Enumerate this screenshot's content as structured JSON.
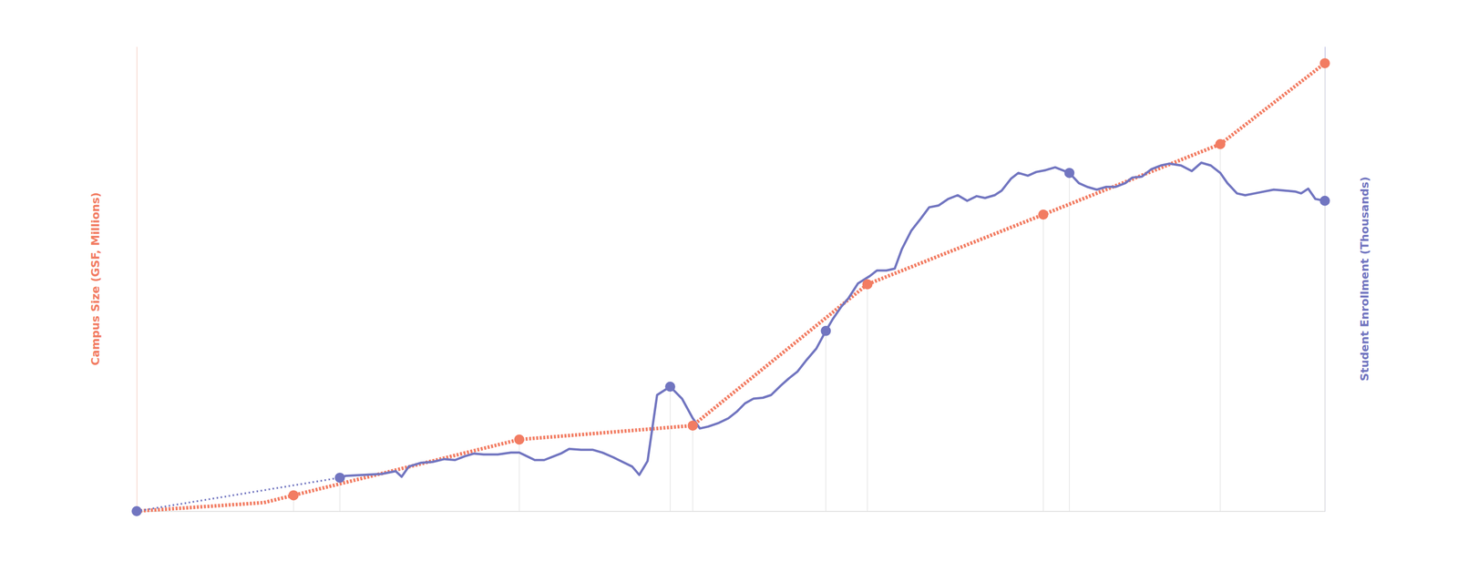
{
  "chart_data": {
    "type": "line",
    "y_label": "Campus Size (GSF, Millions)",
    "y2_label": "Student Enrollment (Thousands)",
    "xlim": [
      0,
      100
    ],
    "ylim": [
      0,
      12
    ],
    "y2lim": [
      0,
      50
    ],
    "tick_labels": false,
    "grid": false,
    "series": [
      {
        "type": "line",
        "color": "#f27c62",
        "line_style": "dotted",
        "marker": "none",
        "x": [
          0,
          10.7,
          13.2,
          32.2,
          46.8,
          61.5,
          76.3,
          91.2,
          100
        ],
        "values": [
          0,
          0.22,
          0.41,
          1.85,
          2.21,
          5.86,
          7.66,
          9.48,
          11.57
        ]
      },
      {
        "type": "scatter",
        "color": "#f27c62",
        "marker": "circle",
        "x": [
          13.2,
          32.2,
          46.8,
          61.5,
          76.3,
          91.2,
          100
        ],
        "values": [
          0.41,
          1.85,
          2.21,
          5.86,
          7.66,
          9.48,
          11.57
        ]
      },
      {
        "type": "line",
        "color": "#7175c0",
        "line_style": "dotted",
        "marker": "circle",
        "axis": "y2",
        "x": [
          0,
          17.1
        ],
        "values": [
          0,
          3.6
        ]
      },
      {
        "type": "line",
        "color": "#7175c0",
        "line_style": "solid",
        "marker": "none",
        "axis": "y2",
        "x": [
          17.1,
          17.6,
          19.0,
          20.6,
          21.8,
          22.3,
          22.9,
          23.9,
          24.9,
          25.9,
          26.8,
          27.6,
          28.4,
          29.2,
          30.4,
          31.5,
          32.2,
          32.7,
          33.5,
          34.3,
          35.1,
          35.7,
          36.4,
          37.4,
          38.4,
          39.2,
          40.1,
          40.9,
          41.7,
          42.3,
          43.0,
          43.8,
          44.9,
          45.9,
          46.8,
          47.4,
          48.1,
          49.0,
          49.8,
          50.5,
          51.2,
          51.9,
          52.7,
          53.4,
          54.2,
          54.9,
          55.6,
          56.4,
          57.2,
          58.0,
          58.6,
          59.3,
          59.9,
          60.7,
          61.7,
          62.3,
          63.1,
          63.8,
          64.4,
          65.2,
          66.0,
          66.7,
          67.5,
          68.3,
          69.1,
          69.9,
          70.7,
          71.4,
          72.2,
          72.8,
          73.6,
          74.2,
          75.0,
          75.7,
          76.5,
          77.3,
          78.5,
          79.3,
          80.0,
          80.8,
          81.6,
          82.4,
          83.2,
          83.8,
          84.6,
          85.4,
          86.2,
          86.9,
          87.9,
          88.8,
          89.6,
          90.4,
          91.2,
          91.8,
          92.6,
          93.3,
          94.1,
          94.9,
          95.7,
          96.6,
          97.5,
          98.0,
          98.6,
          99.2,
          100
        ],
        "values": [
          3.6,
          3.8,
          3.9,
          4.0,
          4.3,
          3.7,
          4.8,
          5.2,
          5.3,
          5.6,
          5.5,
          5.9,
          6.2,
          6.1,
          6.1,
          6.3,
          6.3,
          6.0,
          5.5,
          5.5,
          5.9,
          6.2,
          6.7,
          6.6,
          6.6,
          6.3,
          5.8,
          5.3,
          4.8,
          3.9,
          5.4,
          12.5,
          13.4,
          12.1,
          10.0,
          8.9,
          9.1,
          9.5,
          10.0,
          10.7,
          11.6,
          12.1,
          12.2,
          12.5,
          13.5,
          14.3,
          15.0,
          16.3,
          17.5,
          19.4,
          20.7,
          22.0,
          22.9,
          24.5,
          25.3,
          25.9,
          25.9,
          26.1,
          28.2,
          30.2,
          31.5,
          32.7,
          32.9,
          33.6,
          34.0,
          33.4,
          33.9,
          33.7,
          34.0,
          34.5,
          35.8,
          36.4,
          36.1,
          36.5,
          36.7,
          37.0,
          36.4,
          35.3,
          34.9,
          34.6,
          34.9,
          34.9,
          35.3,
          35.9,
          36.0,
          36.8,
          37.2,
          37.4,
          37.2,
          36.6,
          37.5,
          37.2,
          36.4,
          35.3,
          34.2,
          34.0,
          34.2,
          34.4,
          34.6,
          34.5,
          34.4,
          34.2,
          34.7,
          33.6,
          33.4
        ]
      },
      {
        "type": "scatter",
        "color": "#7175c0",
        "marker": "circle",
        "axis": "y2",
        "x": [
          44.9,
          58.0,
          78.5,
          100
        ],
        "values": [
          13.4,
          19.4,
          36.4,
          33.4
        ]
      }
    ]
  }
}
